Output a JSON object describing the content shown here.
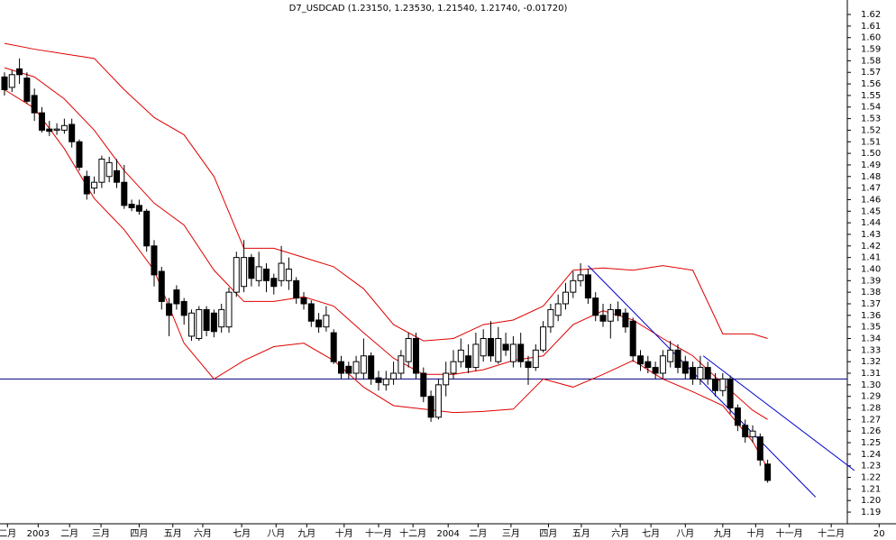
{
  "chart_data": {
    "type": "candlestick",
    "title": "D7_USDCAD (1.23150, 1.23530, 1.21540, 1.21740, -0.01720)",
    "xlim": [
      -0.6,
      112.65
    ],
    "ylim": [
      1.1807,
      1.6325
    ],
    "yticks": [
      1.19,
      {
        "value": 1.2,
        "label": "1.20"
      },
      1.21,
      1.22,
      1.23,
      1.24,
      1.25,
      1.26,
      1.27,
      1.28,
      1.29,
      {
        "value": 1.3,
        "label": "1.30"
      },
      1.31,
      1.32,
      1.33,
      1.34,
      1.35,
      1.36,
      1.37,
      1.38,
      1.39,
      {
        "value": 1.4,
        "label": "1.40"
      },
      1.41,
      1.42,
      1.43,
      1.44,
      1.45,
      1.46,
      1.47,
      1.48,
      1.49,
      {
        "value": 1.5,
        "label": "1.50"
      },
      1.51,
      1.52,
      1.53,
      1.54,
      1.55,
      1.56,
      1.57,
      1.58,
      1.59,
      {
        "value": 1.6,
        "label": "1.60"
      },
      1.61,
      1.62
    ],
    "xticks": [
      {
        "value": 0.4,
        "label": "二月"
      },
      {
        "value": 4.5,
        "label": "2003"
      },
      {
        "value": 8.7,
        "label": "二月"
      },
      {
        "value": 12.9,
        "label": "三月"
      },
      {
        "value": 18,
        "label": "四月"
      },
      {
        "value": 22.5,
        "label": "五月"
      },
      {
        "value": 26.5,
        "label": "六月"
      },
      {
        "value": 31.7,
        "label": "七月"
      },
      {
        "value": 36.3,
        "label": "八月"
      },
      {
        "value": 40.4,
        "label": "九月"
      },
      {
        "value": 45.4,
        "label": "十月"
      },
      {
        "value": 50,
        "label": "十一月"
      },
      {
        "value": 54.6,
        "label": "十二月"
      },
      {
        "value": 59.3,
        "label": "2004"
      },
      {
        "value": 63.3,
        "label": "二月"
      },
      {
        "value": 67.7,
        "label": "三月"
      },
      {
        "value": 72.7,
        "label": "四月"
      },
      {
        "value": 77.1,
        "label": "五月"
      },
      {
        "value": 82.3,
        "label": "六月"
      },
      {
        "value": 86.4,
        "label": "七月"
      },
      {
        "value": 91,
        "label": "八月"
      },
      {
        "value": 96,
        "label": "九月"
      },
      {
        "value": 100.4,
        "label": "十月"
      },
      {
        "value": 104.9,
        "label": "十一月"
      },
      {
        "value": 110.5,
        "label": "十二月"
      },
      {
        "value": 116.9,
        "label": "20"
      }
    ],
    "up_color": "#ffffff",
    "down_color": "#000000",
    "open": [
      1.566,
      1.557,
      1.573,
      1.565,
      1.55,
      1.535,
      1.521,
      1.52,
      1.52,
      1.525,
      1.51,
      1.48,
      1.47,
      1.475,
      1.48,
      1.485,
      1.475,
      1.456,
      1.455,
      1.45,
      1.42,
      1.398,
      1.37,
      1.382,
      1.372,
      1.342,
      1.34,
      1.365,
      1.362,
      1.35,
      1.35,
      1.38,
      1.385,
      1.41,
      1.39,
      1.4,
      1.392,
      1.39,
      1.39,
      1.39,
      1.375,
      1.37,
      1.356,
      1.35,
      1.345,
      1.32,
      1.316,
      1.31,
      1.31,
      1.325,
      1.306,
      1.3,
      1.305,
      1.31,
      1.32,
      1.34,
      1.31,
      1.29,
      1.272,
      1.3,
      1.31,
      1.32,
      1.325,
      1.315,
      1.325,
      1.34,
      1.32,
      1.335,
      1.32,
      1.335,
      1.32,
      1.315,
      1.33,
      1.35,
      1.36,
      1.37,
      1.38,
      1.39,
      1.395,
      1.375,
      1.36,
      1.355,
      1.365,
      1.362,
      1.355,
      1.325,
      1.32,
      1.315,
      1.31,
      1.32,
      1.33,
      1.32,
      1.315,
      1.305,
      1.315,
      1.305,
      1.295,
      1.305,
      1.28,
      1.265,
      1.255,
      1.255,
      1.2315
    ],
    "high": [
      1.57,
      1.572,
      1.582,
      1.57,
      1.556,
      1.54,
      1.528,
      1.526,
      1.53,
      1.53,
      1.512,
      1.485,
      1.48,
      1.498,
      1.497,
      1.495,
      1.49,
      1.46,
      1.46,
      1.452,
      1.425,
      1.402,
      1.375,
      1.386,
      1.375,
      1.365,
      1.368,
      1.368,
      1.365,
      1.37,
      1.384,
      1.415,
      1.425,
      1.413,
      1.415,
      1.405,
      1.396,
      1.42,
      1.41,
      1.393,
      1.38,
      1.373,
      1.362,
      1.368,
      1.348,
      1.325,
      1.32,
      1.325,
      1.34,
      1.328,
      1.312,
      1.312,
      1.32,
      1.33,
      1.345,
      1.345,
      1.315,
      1.295,
      1.305,
      1.32,
      1.33,
      1.34,
      1.335,
      1.345,
      1.348,
      1.355,
      1.35,
      1.345,
      1.342,
      1.345,
      1.325,
      1.335,
      1.355,
      1.37,
      1.378,
      1.388,
      1.398,
      1.405,
      1.4,
      1.38,
      1.37,
      1.37,
      1.372,
      1.366,
      1.358,
      1.33,
      1.325,
      1.32,
      1.33,
      1.338,
      1.335,
      1.325,
      1.32,
      1.325,
      1.32,
      1.31,
      1.31,
      1.308,
      1.283,
      1.27,
      1.265,
      1.258,
      1.2353
    ],
    "low": [
      1.55,
      1.553,
      1.56,
      1.543,
      1.528,
      1.518,
      1.515,
      1.516,
      1.517,
      1.505,
      1.485,
      1.46,
      1.465,
      1.47,
      1.475,
      1.47,
      1.452,
      1.45,
      1.447,
      1.415,
      1.385,
      1.365,
      1.342,
      1.365,
      1.352,
      1.338,
      1.338,
      1.342,
      1.341,
      1.345,
      1.345,
      1.376,
      1.38,
      1.385,
      1.385,
      1.38,
      1.378,
      1.385,
      1.382,
      1.37,
      1.365,
      1.35,
      1.345,
      1.346,
      1.318,
      1.305,
      1.305,
      1.305,
      1.305,
      1.3,
      1.295,
      1.295,
      1.3,
      1.305,
      1.315,
      1.305,
      1.285,
      1.268,
      1.27,
      1.29,
      1.305,
      1.315,
      1.31,
      1.312,
      1.32,
      1.32,
      1.318,
      1.325,
      1.315,
      1.315,
      1.3,
      1.312,
      1.328,
      1.345,
      1.355,
      1.365,
      1.375,
      1.385,
      1.37,
      1.355,
      1.35,
      1.34,
      1.355,
      1.345,
      1.32,
      1.312,
      1.31,
      1.305,
      1.305,
      1.315,
      1.31,
      1.305,
      1.3,
      1.3,
      1.3,
      1.29,
      1.29,
      1.275,
      1.26,
      1.25,
      1.25,
      1.23,
      1.2154
    ],
    "close": [
      1.555,
      1.568,
      1.568,
      1.545,
      1.535,
      1.52,
      1.519,
      1.521,
      1.524,
      1.51,
      1.488,
      1.465,
      1.475,
      1.495,
      1.492,
      1.475,
      1.455,
      1.453,
      1.45,
      1.42,
      1.395,
      1.372,
      1.36,
      1.37,
      1.36,
      1.362,
      1.365,
      1.347,
      1.346,
      1.365,
      1.38,
      1.41,
      1.41,
      1.392,
      1.402,
      1.39,
      1.385,
      1.405,
      1.4,
      1.375,
      1.37,
      1.355,
      1.35,
      1.36,
      1.32,
      1.31,
      1.31,
      1.32,
      1.325,
      1.305,
      1.302,
      1.305,
      1.31,
      1.325,
      1.34,
      1.31,
      1.29,
      1.272,
      1.3,
      1.31,
      1.32,
      1.33,
      1.315,
      1.335,
      1.34,
      1.325,
      1.34,
      1.33,
      1.335,
      1.32,
      1.315,
      1.33,
      1.35,
      1.365,
      1.37,
      1.38,
      1.39,
      1.395,
      1.375,
      1.36,
      1.355,
      1.365,
      1.36,
      1.35,
      1.325,
      1.318,
      1.315,
      1.31,
      1.325,
      1.33,
      1.315,
      1.31,
      1.305,
      1.315,
      1.305,
      1.295,
      1.305,
      1.28,
      1.265,
      1.255,
      1.26,
      1.235,
      1.2174
    ],
    "bands": [
      {
        "color": "#e00000",
        "x": [
          0,
          4,
          8,
          12,
          16,
          20,
          24,
          28,
          32,
          36,
          40,
          44,
          48,
          52,
          56,
          60,
          64,
          68,
          72,
          76,
          80,
          84,
          88,
          92,
          96,
          100,
          102
        ],
        "values": [
          1.595,
          1.59,
          1.586,
          1.582,
          1.555,
          1.531,
          1.516,
          1.48,
          1.418,
          1.418,
          1.41,
          1.402,
          1.383,
          1.352,
          1.338,
          1.34,
          1.352,
          1.356,
          1.368,
          1.399,
          1.401,
          1.399,
          1.403,
          1.399,
          1.344,
          1.344,
          1.34
        ]
      },
      {
        "color": "#e00000",
        "x": [
          0,
          4,
          8,
          12,
          16,
          20,
          24,
          28,
          32,
          36,
          40,
          44,
          48,
          52,
          56,
          60,
          64,
          68,
          72,
          76,
          80,
          84,
          88,
          92,
          96,
          100,
          102
        ],
        "values": [
          1.574,
          1.566,
          1.547,
          1.52,
          1.485,
          1.457,
          1.438,
          1.399,
          1.372,
          1.372,
          1.376,
          1.368,
          1.345,
          1.323,
          1.309,
          1.309,
          1.313,
          1.321,
          1.325,
          1.352,
          1.364,
          1.356,
          1.34,
          1.325,
          1.301,
          1.278,
          1.27
        ]
      },
      {
        "color": "#e00000",
        "x": [
          0,
          4,
          8,
          12,
          16,
          20,
          24,
          28,
          32,
          36,
          40,
          44,
          48,
          52,
          56,
          60,
          64,
          68,
          72,
          76,
          80,
          84,
          88,
          92,
          96,
          100,
          102
        ],
        "values": [
          1.555,
          1.539,
          1.504,
          1.461,
          1.434,
          1.399,
          1.336,
          1.305,
          1.321,
          1.333,
          1.336,
          1.321,
          1.298,
          1.282,
          1.279,
          1.276,
          1.277,
          1.279,
          1.305,
          1.298,
          1.309,
          1.321,
          1.305,
          1.294,
          1.282,
          1.251,
          1.228
        ]
      }
    ],
    "trendlines": [
      {
        "color": "#0000cc",
        "x": [
          78,
          108.4
        ],
        "values": [
          1.403,
          1.203
        ]
      },
      {
        "color": "#0000cc",
        "x": [
          93.4,
          113.6
        ],
        "values": [
          1.325,
          1.226
        ]
      }
    ],
    "hline": {
      "value": 1.305,
      "color": "#000080"
    }
  }
}
